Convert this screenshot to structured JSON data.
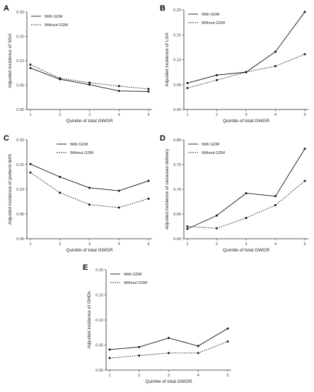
{
  "chart_data": [
    {
      "panel": "A",
      "type": "line",
      "xlabel": "Quintile of total GWGR",
      "ylabel": "Adjusted incidence of SGA",
      "x": [
        1,
        2,
        3,
        4,
        5
      ],
      "ylim": [
        0,
        0.2
      ],
      "yticks": [
        0,
        0.05,
        0.1,
        0.15,
        0.2
      ],
      "ytick_labels": [
        "0.00",
        "0.05",
        "0.10",
        "0.15",
        "0.20"
      ],
      "legend_position": "top-left",
      "series": [
        {
          "name": "With GDM",
          "style": "solid",
          "values": [
            0.085,
            0.062,
            0.051,
            0.038,
            0.037
          ]
        },
        {
          "name": "Without GDM",
          "style": "dotted",
          "values": [
            0.092,
            0.064,
            0.055,
            0.048,
            0.042
          ]
        }
      ]
    },
    {
      "panel": "B",
      "type": "line",
      "xlabel": "Quintile of total GWGR",
      "ylabel": "Adjusted incidence of LGA",
      "x": [
        1,
        2,
        3,
        4,
        5
      ],
      "ylim": [
        0,
        0.2
      ],
      "yticks": [
        0,
        0.05,
        0.1,
        0.15,
        0.2
      ],
      "ytick_labels": [
        "0.00",
        "0.05",
        "0.10",
        "0.15",
        "0.20"
      ],
      "legend_position": "top-left",
      "series": [
        {
          "name": "With GDM",
          "style": "solid",
          "values": [
            0.053,
            0.069,
            0.075,
            0.116,
            0.196
          ]
        },
        {
          "name": "Without GDM",
          "style": "dotted",
          "values": [
            0.043,
            0.059,
            0.075,
            0.087,
            0.111
          ]
        }
      ]
    },
    {
      "panel": "C",
      "type": "line",
      "xlabel": "Quintile of total GWGR",
      "ylabel": "Adjusted incidence of preterm birth",
      "x": [
        1,
        2,
        3,
        4,
        5
      ],
      "ylim": [
        0,
        0.2
      ],
      "yticks": [
        0,
        0.05,
        0.1,
        0.15,
        0.2
      ],
      "ytick_labels": [
        "0.00",
        "0.05",
        "0.10",
        "0.15",
        "0.20"
      ],
      "legend_position": "top-right",
      "series": [
        {
          "name": "With GDM",
          "style": "solid",
          "values": [
            0.151,
            0.125,
            0.103,
            0.097,
            0.117
          ]
        },
        {
          "name": "Without GDM",
          "style": "dotted",
          "values": [
            0.134,
            0.093,
            0.069,
            0.063,
            0.081
          ]
        }
      ]
    },
    {
      "panel": "D",
      "type": "line",
      "xlabel": "Quintile of total GWGR",
      "ylabel": "Adjusted incidence of cesarean delivery",
      "x": [
        1,
        2,
        3,
        4,
        5
      ],
      "ylim": [
        0.6,
        0.8
      ],
      "yticks": [
        0.6,
        0.65,
        0.7,
        0.75,
        0.8
      ],
      "ytick_labels": [
        "0.60",
        "0.65",
        "0.70",
        "0.75",
        "0.80"
      ],
      "legend_position": "top-left",
      "series": [
        {
          "name": "With GDM",
          "style": "solid",
          "values": [
            0.62,
            0.647,
            0.692,
            0.686,
            0.782
          ]
        },
        {
          "name": "Without GDM",
          "style": "dotted",
          "values": [
            0.625,
            0.621,
            0.642,
            0.668,
            0.717
          ]
        }
      ]
    },
    {
      "panel": "E",
      "type": "line",
      "xlabel": "Quintile of total GWGR",
      "ylabel": "Adjusted incidence of GHDs",
      "x": [
        1,
        2,
        3,
        4,
        5
      ],
      "ylim": [
        0,
        0.2
      ],
      "yticks": [
        0,
        0.05,
        0.1,
        0.15,
        0.2
      ],
      "ytick_labels": [
        "0.00",
        "0.05",
        "0.10",
        "0.15",
        "0.20"
      ],
      "legend_position": "top-left",
      "series": [
        {
          "name": "With GDM",
          "style": "solid",
          "values": [
            0.041,
            0.046,
            0.064,
            0.048,
            0.083
          ]
        },
        {
          "name": "Without GDM",
          "style": "dotted",
          "values": [
            0.024,
            0.029,
            0.034,
            0.034,
            0.057
          ]
        }
      ]
    }
  ]
}
